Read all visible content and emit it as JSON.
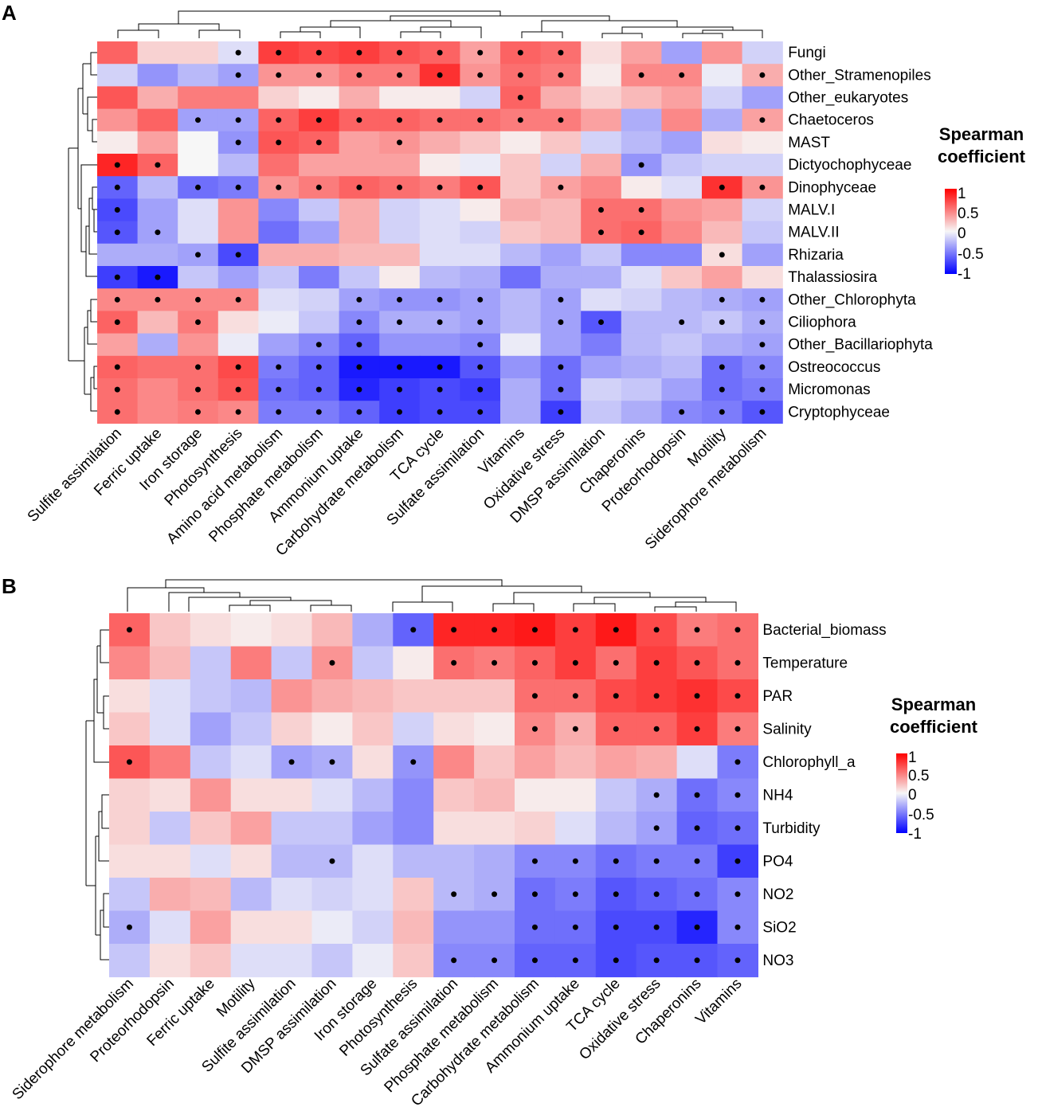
{
  "chart_data": [
    {
      "type": "heatmap",
      "panel": "A",
      "legend_title": [
        "Spearman",
        "coefficient"
      ],
      "color_scale": {
        "min": -1,
        "max": 1,
        "ticks": [
          "1",
          "0.5",
          "0",
          "-0.5",
          "-1"
        ],
        "low": "#0000ff",
        "mid": "#f7f7f7",
        "high": "#ff0000"
      },
      "rows": [
        "Fungi",
        "Other_Stramenopiles",
        "Other_eukaryotes",
        "Chaetoceros",
        "MAST",
        "Dictyochophyceae",
        "Dinophyceae",
        "MALV.I",
        "MALV.II",
        "Rhizaria",
        "Thalassiosira",
        "Other_Chlorophyta",
        "Ciliophora",
        "Other_Bacillariophyta",
        "Ostreococcus",
        "Micromonas",
        "Cryptophyceae"
      ],
      "columns": [
        "Sulfite assimilation",
        "Ferric uptake",
        "Iron storage",
        "Photosynthesis",
        "Amino acid metabolism",
        "Phosphate metabolism",
        "Ammonium uptake",
        "Carbohydrate metabolism",
        "TCA cycle",
        "Sulfate assimilation",
        "Vitamins",
        "Oxidative stress",
        "DMSP assimilation",
        "Chaperonins",
        "Proteorhodopsin",
        "Motility",
        "Siderophore metabolism"
      ],
      "values": [
        [
          0.6,
          0.15,
          0.15,
          -0.1,
          0.75,
          0.7,
          0.75,
          0.65,
          0.6,
          0.35,
          0.6,
          0.55,
          0.1,
          0.35,
          -0.35,
          0.4,
          -0.15
        ],
        [
          -0.15,
          -0.4,
          -0.25,
          -0.35,
          0.4,
          0.4,
          0.5,
          0.5,
          0.8,
          0.4,
          0.55,
          0.5,
          0.05,
          0.45,
          0.45,
          -0.05,
          0.3
        ],
        [
          0.65,
          0.3,
          0.5,
          0.5,
          0.15,
          0.05,
          0.3,
          0.05,
          0.05,
          -0.15,
          0.6,
          0.3,
          0.15,
          0.25,
          0.35,
          -0.15,
          -0.35
        ],
        [
          0.4,
          0.6,
          -0.35,
          -0.35,
          0.6,
          0.75,
          0.6,
          0.6,
          0.55,
          0.55,
          0.5,
          0.5,
          0.35,
          -0.3,
          0.45,
          -0.3,
          0.35
        ],
        [
          0.05,
          0.35,
          0.0,
          -0.4,
          0.65,
          0.6,
          0.35,
          0.4,
          0.3,
          0.2,
          0.05,
          0.2,
          -0.15,
          -0.25,
          -0.35,
          0.1,
          0.05
        ],
        [
          0.85,
          0.6,
          0.0,
          -0.25,
          0.55,
          0.35,
          0.35,
          0.35,
          0.05,
          -0.05,
          0.2,
          -0.15,
          0.3,
          -0.4,
          -0.2,
          -0.15,
          -0.15
        ],
        [
          -0.6,
          -0.25,
          -0.55,
          -0.5,
          0.4,
          0.5,
          0.6,
          0.55,
          0.5,
          0.65,
          0.2,
          0.35,
          0.45,
          0.05,
          -0.1,
          0.8,
          0.4
        ],
        [
          -0.7,
          -0.35,
          -0.1,
          0.4,
          -0.45,
          -0.2,
          0.3,
          -0.15,
          -0.1,
          0.05,
          0.3,
          0.25,
          0.55,
          0.55,
          0.4,
          0.35,
          -0.15
        ],
        [
          -0.65,
          -0.35,
          -0.1,
          0.4,
          -0.55,
          -0.35,
          0.3,
          -0.15,
          -0.1,
          -0.15,
          0.2,
          0.25,
          0.55,
          0.6,
          0.45,
          0.25,
          -0.2
        ],
        [
          -0.3,
          -0.3,
          -0.35,
          -0.7,
          0.3,
          0.3,
          0.25,
          0.25,
          -0.1,
          -0.1,
          -0.25,
          -0.35,
          -0.2,
          -0.45,
          -0.45,
          0.1,
          -0.35
        ],
        [
          -0.75,
          -0.9,
          -0.2,
          -0.35,
          -0.2,
          -0.5,
          -0.2,
          0.05,
          -0.25,
          -0.3,
          -0.55,
          -0.3,
          -0.3,
          -0.1,
          0.2,
          0.35,
          0.1
        ],
        [
          0.45,
          0.45,
          0.45,
          0.45,
          -0.1,
          -0.15,
          -0.35,
          -0.4,
          -0.4,
          -0.35,
          -0.25,
          -0.35,
          -0.1,
          -0.15,
          -0.25,
          -0.3,
          -0.35
        ],
        [
          0.6,
          0.25,
          0.5,
          0.1,
          -0.05,
          -0.2,
          -0.45,
          -0.3,
          -0.3,
          -0.35,
          -0.25,
          -0.35,
          -0.65,
          -0.25,
          -0.25,
          -0.2,
          -0.3
        ],
        [
          0.35,
          -0.3,
          0.4,
          -0.05,
          -0.35,
          -0.45,
          -0.6,
          -0.4,
          -0.4,
          -0.45,
          -0.05,
          -0.35,
          -0.5,
          -0.25,
          -0.2,
          -0.3,
          -0.35
        ],
        [
          0.6,
          0.55,
          0.55,
          0.7,
          -0.5,
          -0.6,
          -0.9,
          -0.9,
          -0.9,
          -0.65,
          -0.4,
          -0.55,
          -0.35,
          -0.3,
          -0.25,
          -0.55,
          -0.45
        ],
        [
          0.55,
          0.45,
          0.55,
          0.65,
          -0.55,
          -0.6,
          -0.85,
          -0.75,
          -0.7,
          -0.75,
          -0.3,
          -0.55,
          -0.15,
          -0.2,
          -0.35,
          -0.55,
          -0.5
        ],
        [
          0.55,
          0.45,
          0.5,
          0.45,
          -0.5,
          -0.5,
          -0.6,
          -0.75,
          -0.7,
          -0.7,
          -0.3,
          -0.75,
          -0.2,
          -0.3,
          -0.45,
          -0.5,
          -0.65
        ]
      ],
      "significant": [
        [
          0,
          0,
          0,
          1,
          1,
          1,
          1,
          1,
          1,
          1,
          1,
          1,
          0,
          0,
          0,
          0,
          0
        ],
        [
          0,
          0,
          0,
          1,
          1,
          1,
          1,
          1,
          1,
          1,
          1,
          1,
          0,
          1,
          1,
          0,
          1
        ],
        [
          0,
          0,
          0,
          0,
          0,
          0,
          0,
          0,
          0,
          0,
          1,
          0,
          0,
          0,
          0,
          0,
          0
        ],
        [
          0,
          0,
          1,
          1,
          1,
          1,
          1,
          1,
          1,
          1,
          1,
          1,
          0,
          0,
          0,
          0,
          1
        ],
        [
          0,
          0,
          0,
          1,
          1,
          1,
          0,
          1,
          0,
          0,
          0,
          0,
          0,
          0,
          0,
          0,
          0
        ],
        [
          1,
          1,
          0,
          0,
          0,
          0,
          0,
          0,
          0,
          0,
          0,
          0,
          0,
          1,
          0,
          0,
          0
        ],
        [
          1,
          0,
          1,
          1,
          1,
          1,
          1,
          1,
          1,
          1,
          0,
          1,
          0,
          0,
          0,
          1,
          1
        ],
        [
          1,
          0,
          0,
          0,
          0,
          0,
          0,
          0,
          0,
          0,
          0,
          0,
          1,
          1,
          0,
          0,
          0
        ],
        [
          1,
          1,
          0,
          0,
          0,
          0,
          0,
          0,
          0,
          0,
          0,
          0,
          1,
          1,
          0,
          0,
          0
        ],
        [
          0,
          0,
          1,
          1,
          0,
          0,
          0,
          0,
          0,
          0,
          0,
          0,
          0,
          0,
          0,
          1,
          0
        ],
        [
          1,
          1,
          0,
          0,
          0,
          0,
          0,
          0,
          0,
          0,
          0,
          0,
          0,
          0,
          0,
          0,
          0
        ],
        [
          1,
          1,
          1,
          1,
          0,
          0,
          1,
          1,
          1,
          1,
          0,
          1,
          0,
          0,
          0,
          1,
          1
        ],
        [
          1,
          0,
          1,
          0,
          0,
          0,
          1,
          1,
          1,
          1,
          0,
          1,
          1,
          0,
          1,
          1,
          1
        ],
        [
          0,
          0,
          0,
          0,
          0,
          1,
          1,
          0,
          0,
          1,
          0,
          0,
          0,
          0,
          0,
          0,
          1
        ],
        [
          1,
          0,
          1,
          1,
          1,
          1,
          1,
          1,
          1,
          1,
          0,
          1,
          0,
          0,
          0,
          1,
          1
        ],
        [
          1,
          0,
          1,
          1,
          1,
          1,
          1,
          1,
          1,
          1,
          0,
          1,
          0,
          0,
          0,
          1,
          1
        ],
        [
          1,
          0,
          1,
          1,
          1,
          1,
          1,
          1,
          1,
          1,
          0,
          1,
          0,
          0,
          1,
          1,
          1
        ]
      ]
    },
    {
      "type": "heatmap",
      "panel": "B",
      "legend_title": [
        "Spearman",
        "coefficient"
      ],
      "color_scale": {
        "min": -1,
        "max": 1,
        "ticks": [
          "1",
          "0.5",
          "0",
          "-0.5",
          "-1"
        ],
        "low": "#0000ff",
        "mid": "#f7f7f7",
        "high": "#ff0000"
      },
      "rows": [
        "Bacterial_biomass",
        "Temperature",
        "PAR",
        "Salinity",
        "Chlorophyll_a",
        "NH4",
        "Turbidity",
        "PO4",
        "NO2",
        "SiO2",
        "NO3"
      ],
      "columns": [
        "Siderophore metabolism",
        "Proteorhodopsin",
        "Ferric uptake",
        "Motility",
        "Sulfite assimilation",
        "DMSP assimilation",
        "Iron storage",
        "Photosynthesis",
        "Sulfate assimilation",
        "Phosphate metabolism",
        "Carbohydrate metabolism",
        "Ammonium uptake",
        "TCA cycle",
        "Oxidative stress",
        "Chaperonins",
        "Vitamins"
      ],
      "values": [
        [
          0.6,
          0.2,
          0.1,
          0.05,
          0.1,
          0.25,
          -0.3,
          -0.6,
          0.85,
          0.85,
          0.9,
          0.75,
          0.9,
          0.7,
          0.5,
          0.55
        ],
        [
          0.45,
          0.25,
          -0.2,
          0.5,
          -0.2,
          0.4,
          -0.2,
          0.05,
          0.55,
          0.5,
          0.6,
          0.75,
          0.55,
          0.75,
          0.65,
          0.55
        ],
        [
          0.1,
          -0.1,
          -0.2,
          -0.25,
          0.4,
          0.3,
          0.25,
          0.2,
          0.2,
          0.2,
          0.55,
          0.55,
          0.7,
          0.75,
          0.8,
          0.7
        ],
        [
          0.2,
          -0.1,
          -0.35,
          -0.2,
          0.15,
          0.05,
          0.2,
          -0.15,
          0.1,
          0.05,
          0.45,
          0.3,
          0.6,
          0.6,
          0.75,
          0.5
        ],
        [
          0.65,
          0.5,
          -0.2,
          -0.1,
          -0.35,
          -0.3,
          0.1,
          -0.4,
          0.45,
          0.2,
          0.35,
          0.25,
          0.35,
          0.3,
          -0.1,
          -0.5
        ],
        [
          0.15,
          0.1,
          0.4,
          0.1,
          0.1,
          -0.1,
          -0.25,
          -0.45,
          0.2,
          0.25,
          0.05,
          0.05,
          -0.2,
          -0.3,
          -0.55,
          -0.45
        ],
        [
          0.15,
          -0.2,
          0.2,
          0.35,
          -0.2,
          -0.2,
          -0.35,
          -0.45,
          0.1,
          0.1,
          0.15,
          -0.1,
          -0.25,
          -0.35,
          -0.6,
          -0.55
        ],
        [
          0.1,
          0.1,
          -0.1,
          0.1,
          -0.25,
          -0.25,
          -0.1,
          -0.25,
          -0.25,
          -0.3,
          -0.45,
          -0.45,
          -0.55,
          -0.5,
          -0.5,
          -0.75
        ],
        [
          -0.2,
          0.3,
          0.25,
          -0.25,
          -0.1,
          -0.15,
          -0.1,
          0.2,
          -0.25,
          -0.3,
          -0.55,
          -0.5,
          -0.65,
          -0.6,
          -0.55,
          -0.45
        ],
        [
          -0.3,
          -0.1,
          0.35,
          0.1,
          0.1,
          -0.05,
          -0.15,
          0.25,
          -0.4,
          -0.4,
          -0.55,
          -0.55,
          -0.7,
          -0.7,
          -0.85,
          -0.45
        ],
        [
          -0.2,
          0.1,
          0.2,
          -0.1,
          -0.1,
          -0.2,
          -0.05,
          0.2,
          -0.45,
          -0.45,
          -0.6,
          -0.6,
          -0.7,
          -0.65,
          -0.65,
          -0.6
        ]
      ],
      "significant": [
        [
          1,
          0,
          0,
          0,
          0,
          0,
          0,
          1,
          1,
          1,
          1,
          1,
          1,
          1,
          1,
          1
        ],
        [
          0,
          0,
          0,
          0,
          0,
          1,
          0,
          0,
          1,
          1,
          1,
          1,
          1,
          1,
          1,
          1
        ],
        [
          0,
          0,
          0,
          0,
          0,
          0,
          0,
          0,
          0,
          0,
          1,
          1,
          1,
          1,
          1,
          1
        ],
        [
          0,
          0,
          0,
          0,
          0,
          0,
          0,
          0,
          0,
          0,
          1,
          1,
          1,
          1,
          1,
          1
        ],
        [
          1,
          0,
          0,
          0,
          1,
          1,
          0,
          1,
          0,
          0,
          0,
          0,
          0,
          0,
          0,
          1
        ],
        [
          0,
          0,
          0,
          0,
          0,
          0,
          0,
          0,
          0,
          0,
          0,
          0,
          0,
          1,
          1,
          1
        ],
        [
          0,
          0,
          0,
          0,
          0,
          0,
          0,
          0,
          0,
          0,
          0,
          0,
          0,
          1,
          1,
          1
        ],
        [
          0,
          0,
          0,
          0,
          0,
          1,
          0,
          0,
          0,
          0,
          1,
          1,
          1,
          1,
          1,
          1
        ],
        [
          0,
          0,
          0,
          0,
          0,
          0,
          0,
          0,
          1,
          1,
          1,
          1,
          1,
          1,
          1,
          1
        ],
        [
          1,
          0,
          0,
          0,
          0,
          0,
          0,
          0,
          0,
          0,
          1,
          1,
          1,
          1,
          1,
          1
        ],
        [
          0,
          0,
          0,
          0,
          0,
          0,
          0,
          0,
          1,
          1,
          1,
          1,
          1,
          1,
          1,
          1
        ]
      ]
    }
  ]
}
